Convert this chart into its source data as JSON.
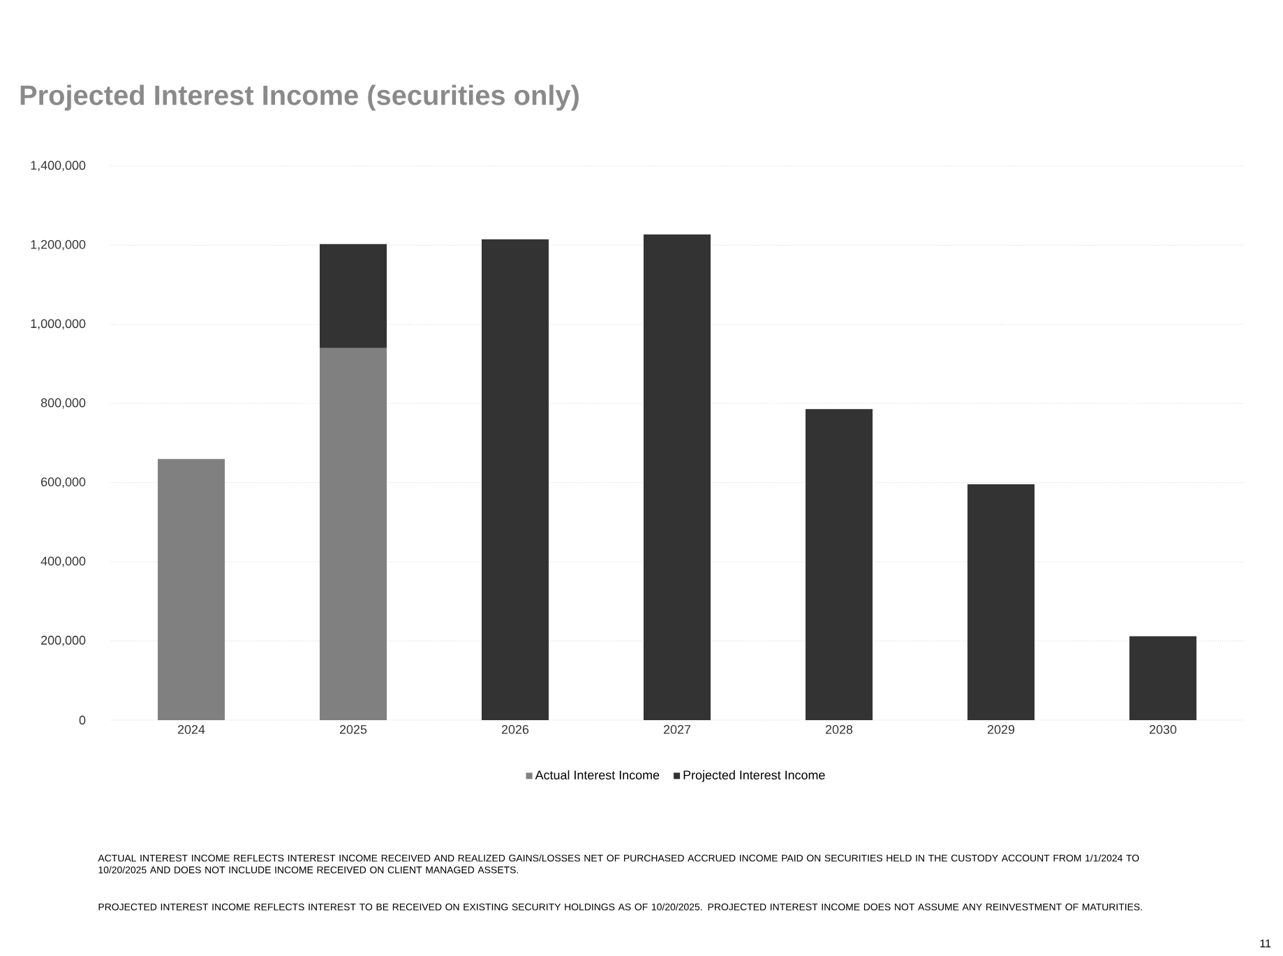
{
  "chart_data": {
    "type": "bar",
    "title": "Projected Interest Income (securities only)",
    "categories": [
      "2024",
      "2025",
      "2026",
      "2027",
      "2028",
      "2029",
      "2030"
    ],
    "stacked": true,
    "series": [
      {
        "name": "Actual Interest Income",
        "color": "#808080",
        "values": [
          660000,
          940000,
          null,
          null,
          null,
          null,
          null
        ]
      },
      {
        "name": "Projected Interest Income",
        "color": "#333333",
        "values": [
          null,
          263000,
          1215000,
          1227000,
          786000,
          596000,
          212000
        ]
      }
    ],
    "ylim": [
      0,
      1400000
    ],
    "yticks": [
      {
        "value": 0,
        "label": "0"
      },
      {
        "value": 200000,
        "label": "200,000"
      },
      {
        "value": 400000,
        "label": "400,000"
      },
      {
        "value": 600000,
        "label": "600,000"
      },
      {
        "value": 800000,
        "label": "800,000"
      },
      {
        "value": 1000000,
        "label": "1,000,000"
      },
      {
        "value": 1200000,
        "label": "1,200,000"
      },
      {
        "value": 1400000,
        "label": "1,400,000"
      }
    ],
    "grid": "y",
    "legend": "bottom",
    "annotations": [
      "ACTUAL INTEREST INCOME REFLECTS INTEREST INCOME RECEIVED AND REALIZED GAINS/LOSSES NET OF PURCHASED ACCRUED INCOME PAID ON SECURITIES HELD IN THE CUSTODY ACCOUNT FROM 1/1/2024 TO 10/20/2025 AND DOES NOT INCLUDE INCOME RECEIVED ON CLIENT MANAGED ASSETS.",
      "PROJECTED INTEREST INCOME REFLECTS INTEREST TO BE RECEIVED ON EXISTING SECURITY HOLDINGS AS OF 10/20/2025.  PROJECTED INTEREST INCOME DOES NOT ASSUME ANY REINVESTMENT OF MATURITIES.",
      "11"
    ]
  }
}
